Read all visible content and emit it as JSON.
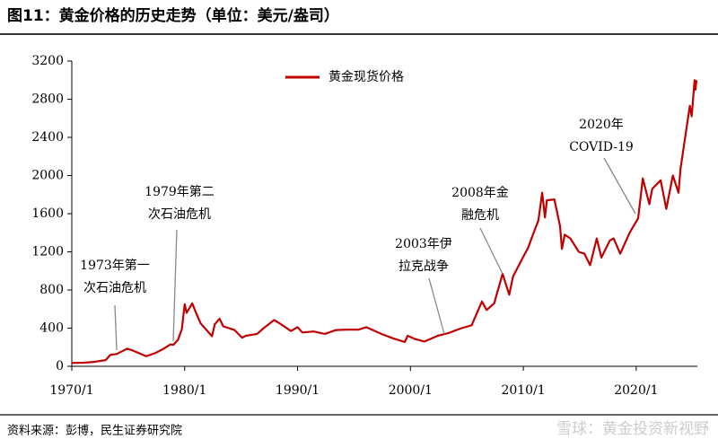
{
  "chart_data": {
    "type": "line",
    "title": "图11：黄金价格的历史走势（单位：美元/盎司）",
    "source": "资料来源：彭博，民生证券研究院",
    "watermark": "雪球：黄金投资新视野",
    "annotations": [
      [
        "1973年第一",
        "次石油危机"
      ],
      [
        "1979年第二",
        "次石油危机"
      ],
      [
        "2003年伊",
        "拉克战争"
      ],
      [
        "2008年金",
        "融危机"
      ],
      [
        "2020年",
        "COVID-19"
      ]
    ],
    "x": [
      "1970/1",
      "1971/1",
      "1972/1",
      "1973/1",
      "1973/6",
      "1974/1",
      "1974/12",
      "1975/6",
      "1976/8",
      "1977/6",
      "1978/1",
      "1978/10",
      "1979/1",
      "1979/6",
      "1979/10",
      "1980/1",
      "1980/3",
      "1980/9",
      "1981/1",
      "1981/6",
      "1982/6",
      "1982/9",
      "1983/2",
      "1983/6",
      "1984/6",
      "1985/2",
      "1985/6",
      "1986/6",
      "1987/1",
      "1987/12",
      "1988/6",
      "1989/6",
      "1990/1",
      "1990/6",
      "1991/6",
      "1992/6",
      "1993/6",
      "1994/6",
      "1995/6",
      "1996/2",
      "1997/6",
      "1998/6",
      "1999/7",
      "1999/10",
      "2000/6",
      "2001/4",
      "2002/6",
      "2003/6",
      "2004/6",
      "2005/6",
      "2006/5",
      "2006/10",
      "2007/6",
      "2008/3",
      "2008/10",
      "2009/2",
      "2009/12",
      "2010/6",
      "2010/12",
      "2011/5",
      "2011/9",
      "2011/12",
      "2012/2",
      "2012/10",
      "2013/4",
      "2013/6",
      "2013/9",
      "2014/3",
      "2014/12",
      "2015/6",
      "2015/12",
      "2016/7",
      "2016/12",
      "2017/9",
      "2018/1",
      "2018/8",
      "2019/6",
      "2019/12",
      "2020/3",
      "2020/8",
      "2021/3",
      "2021/6",
      "2022/3",
      "2022/9",
      "2023/4",
      "2023/10",
      "2023/12",
      "2024/4",
      "2024/10",
      "2024/12",
      "2025/3",
      "2025/4",
      "2025/5"
    ],
    "series": [
      {
        "name": "黄金现货价格",
        "color": "#c00000",
        "values": [
          35,
          38,
          46,
          65,
          120,
          130,
          185,
          165,
          105,
          140,
          175,
          230,
          225,
          280,
          390,
          650,
          560,
          660,
          560,
          450,
          315,
          440,
          500,
          420,
          380,
          300,
          320,
          340,
          400,
          485,
          450,
          370,
          410,
          355,
          365,
          340,
          380,
          385,
          385,
          410,
          340,
          295,
          255,
          320,
          285,
          260,
          320,
          350,
          395,
          430,
          680,
          590,
          660,
          970,
          750,
          940,
          1130,
          1240,
          1400,
          1530,
          1820,
          1560,
          1740,
          1750,
          1470,
          1230,
          1380,
          1340,
          1200,
          1180,
          1060,
          1340,
          1140,
          1320,
          1340,
          1180,
          1400,
          1500,
          1550,
          1970,
          1700,
          1860,
          1950,
          1650,
          2000,
          1820,
          2060,
          2330,
          2730,
          2620,
          3000,
          2900,
          3000
        ]
      }
    ],
    "xlim": [
      "1970/1",
      "2025/6"
    ],
    "xticks": [
      "1970/1",
      "1980/1",
      "1990/1",
      "2000/1",
      "2010/1",
      "2020/1"
    ],
    "ylim": [
      0,
      3200
    ],
    "yticks": [
      0,
      400,
      800,
      1200,
      1600,
      2000,
      2400,
      2800,
      3200
    ],
    "legend": "top"
  }
}
